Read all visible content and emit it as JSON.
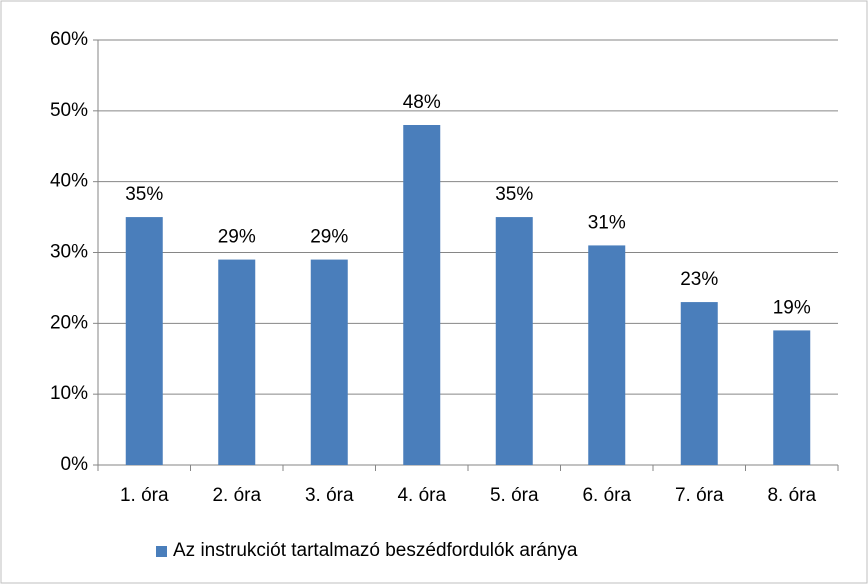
{
  "chart_data": {
    "type": "bar",
    "categories": [
      "1. óra",
      "2. óra",
      "3. óra",
      "4. óra",
      "5. óra",
      "6. óra",
      "7. óra",
      "8. óra"
    ],
    "series": [
      {
        "name": "Az instrukciót tartalmazó beszédfordulók aránya",
        "color": "#4a7ebb",
        "values": [
          35,
          29,
          29,
          48,
          35,
          31,
          23,
          19
        ],
        "value_labels": [
          "35%",
          "29%",
          "29%",
          "48%",
          "35%",
          "31%",
          "23%",
          "19%"
        ]
      }
    ],
    "ylim": [
      0,
      60
    ],
    "yticks": [
      {
        "value": 0,
        "label": "0%"
      },
      {
        "value": 10,
        "label": "10%"
      },
      {
        "value": 20,
        "label": "20%"
      },
      {
        "value": 30,
        "label": "30%"
      },
      {
        "value": 40,
        "label": "40%"
      },
      {
        "value": 50,
        "label": "50%"
      },
      {
        "value": 60,
        "label": "60%"
      }
    ],
    "grid": true,
    "legend": "bottom"
  }
}
